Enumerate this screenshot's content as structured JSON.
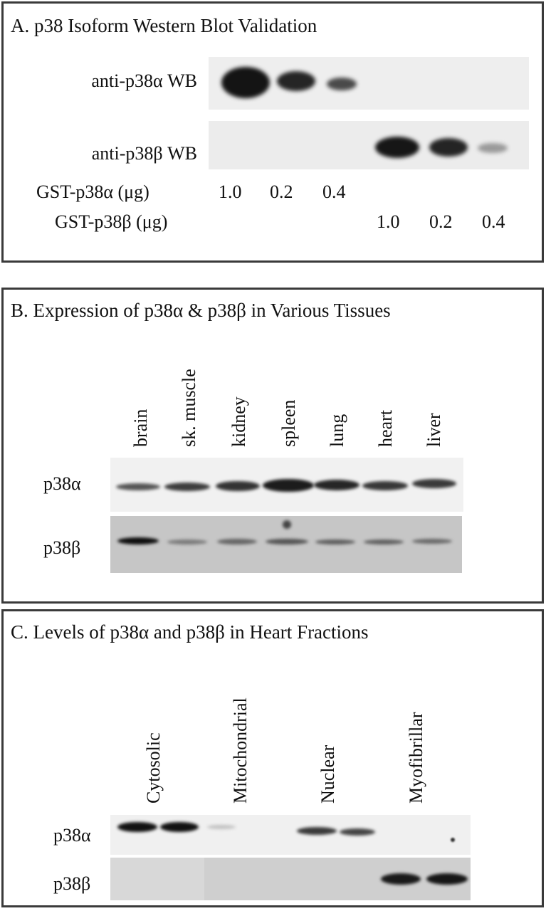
{
  "panel_a": {
    "title": "A. p38 Isoform Western Blot Validation",
    "row_labels": [
      "anti-p38α WB",
      "anti-p38β WB"
    ],
    "amount_rows": [
      {
        "label": "GST-p38α (μg)",
        "values": [
          "1.0",
          "0.2",
          "0.4"
        ]
      },
      {
        "label": "GST-p38β (μg)",
        "values": [
          "1.0",
          "0.2",
          "0.4"
        ]
      }
    ]
  },
  "panel_b": {
    "title": "B. Expression of p38α & p38β  in Various Tissues",
    "lanes": [
      "brain",
      "sk. muscle",
      "kidney",
      "spleen",
      "lung",
      "heart",
      "liver"
    ],
    "row_labels": [
      "p38α",
      "p38β"
    ]
  },
  "panel_c": {
    "title": "C. Levels of p38α and p38β in Heart Fractions",
    "fractions": [
      "Cytosolic",
      "Mitochondrial",
      "Nuclear",
      "Myofibrillar"
    ],
    "row_labels": [
      "p38α",
      "p38β"
    ]
  }
}
